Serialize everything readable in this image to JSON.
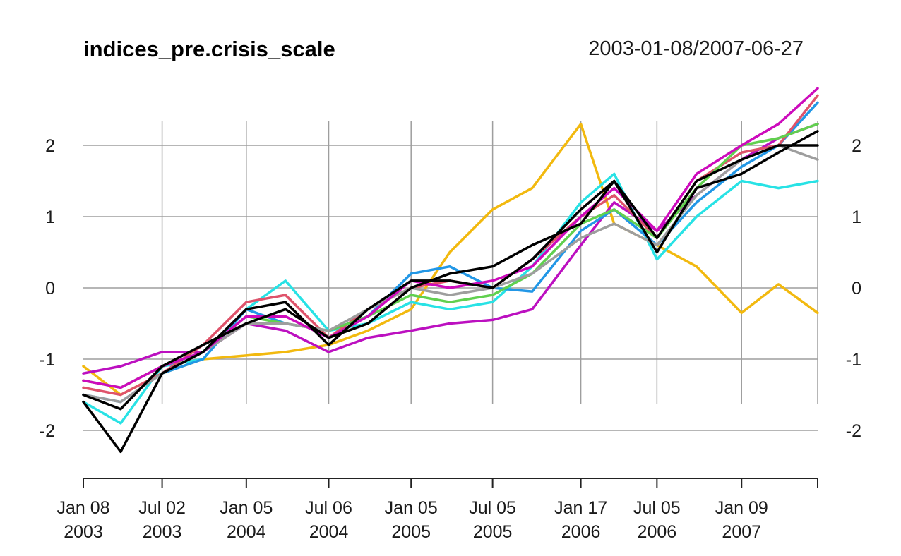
{
  "chart_data": {
    "type": "line",
    "title": "indices_pre.crisis_scale",
    "subtitle": "2003-01-08/2007-06-27",
    "xlabel": "",
    "ylabel": "",
    "x_range": [
      "2003-01-08",
      "2007-06-27"
    ],
    "ylim": [
      -2.6,
      2.9
    ],
    "grid": true,
    "legend": "none",
    "y_ticks": [
      -2,
      -1,
      0,
      1,
      2
    ],
    "y_tick_labels": [
      "-2",
      "-1",
      "0",
      "1",
      "2"
    ],
    "x_ticks": [
      {
        "date": "2003-01-08",
        "line1": "Jan 08",
        "line2": "2003"
      },
      {
        "date": "2003-07-02",
        "line1": "Jul 02",
        "line2": "2003"
      },
      {
        "date": "2004-01-05",
        "line1": "Jan 05",
        "line2": "2004"
      },
      {
        "date": "2004-07-06",
        "line1": "Jul 06",
        "line2": "2004"
      },
      {
        "date": "2005-01-05",
        "line1": "Jan 05",
        "line2": "2005"
      },
      {
        "date": "2005-07-05",
        "line1": "Jul 05",
        "line2": "2005"
      },
      {
        "date": "2006-01-17",
        "line1": "Jan 17",
        "line2": "2006"
      },
      {
        "date": "2006-07-05",
        "line1": "Jul 05",
        "line2": "2006"
      },
      {
        "date": "2007-01-09",
        "line1": "Jan 09",
        "line2": "2007"
      },
      {
        "date": "2007-06-27",
        "line1": "",
        "line2": ""
      }
    ],
    "x_dates": [
      "2003-01-08",
      "2003-04-01",
      "2003-07-02",
      "2003-10-01",
      "2004-01-05",
      "2004-04-01",
      "2004-07-06",
      "2004-10-01",
      "2005-01-05",
      "2005-04-01",
      "2005-07-05",
      "2005-10-01",
      "2006-01-17",
      "2006-04-01",
      "2006-07-05",
      "2006-10-01",
      "2007-01-09",
      "2007-04-01",
      "2007-06-27"
    ],
    "series": [
      {
        "color": "#f2b90f",
        "values": [
          -1.1,
          -1.5,
          -1.2,
          -1.0,
          -0.95,
          -0.9,
          -0.8,
          -0.6,
          -0.3,
          0.5,
          1.1,
          1.4,
          2.3,
          0.9,
          0.6,
          0.3,
          -0.35,
          0.05,
          -0.35
        ]
      },
      {
        "color": "#28e2e5",
        "values": [
          -1.6,
          -1.9,
          -1.1,
          -1.0,
          -0.3,
          0.1,
          -0.6,
          -0.5,
          -0.2,
          -0.3,
          -0.2,
          0.3,
          1.2,
          1.6,
          0.4,
          1.0,
          1.5,
          1.4,
          1.5
        ]
      },
      {
        "color": "#bc10c0",
        "values": [
          -1.2,
          -1.1,
          -0.9,
          -0.9,
          -0.5,
          -0.6,
          -0.9,
          -0.7,
          -0.6,
          -0.5,
          -0.45,
          -0.3,
          0.6,
          1.2,
          0.8,
          1.3,
          1.8,
          2.1,
          2.3
        ]
      },
      {
        "color": "#2297e6",
        "values": [
          -1.5,
          -1.6,
          -1.2,
          -1.0,
          -0.3,
          -0.5,
          -0.6,
          -0.4,
          0.2,
          0.3,
          0.0,
          -0.05,
          0.8,
          1.1,
          0.6,
          1.2,
          1.7,
          2.0,
          2.6
        ]
      },
      {
        "color": "#df536b",
        "values": [
          -1.4,
          -1.5,
          -1.2,
          -0.8,
          -0.2,
          -0.1,
          -0.7,
          -0.3,
          0.0,
          0.1,
          0.0,
          0.4,
          1.0,
          1.3,
          0.7,
          1.5,
          1.9,
          2.0,
          2.7
        ]
      },
      {
        "color": "#61d04f",
        "values": [
          -1.3,
          -1.4,
          -1.1,
          -0.9,
          -0.4,
          -0.5,
          -0.6,
          -0.4,
          -0.1,
          -0.2,
          -0.1,
          0.2,
          0.9,
          1.1,
          0.7,
          1.4,
          2.0,
          2.1,
          2.3
        ]
      },
      {
        "color": "#9e9e9e",
        "values": [
          -1.5,
          -1.6,
          -1.2,
          -0.9,
          -0.5,
          -0.5,
          -0.6,
          -0.3,
          0.0,
          -0.1,
          0.0,
          0.2,
          0.7,
          0.9,
          0.6,
          1.3,
          1.8,
          2.0,
          1.8
        ]
      },
      {
        "color": "#cd0bbc",
        "values": [
          -1.3,
          -1.4,
          -1.1,
          -0.9,
          -0.4,
          -0.4,
          -0.7,
          -0.4,
          0.1,
          0.0,
          0.1,
          0.3,
          1.0,
          1.4,
          0.8,
          1.6,
          2.0,
          2.3,
          2.8
        ]
      },
      {
        "color": "#000000",
        "values": [
          -1.6,
          -2.3,
          -1.2,
          -0.9,
          -0.3,
          -0.2,
          -0.8,
          -0.3,
          0.1,
          0.1,
          0.0,
          0.4,
          1.1,
          1.5,
          0.5,
          1.4,
          1.6,
          1.9,
          2.2
        ]
      },
      {
        "color": "#000000",
        "values": [
          -1.5,
          -1.7,
          -1.1,
          -0.8,
          -0.5,
          -0.3,
          -0.7,
          -0.5,
          0.0,
          0.2,
          0.3,
          0.6,
          0.9,
          1.5,
          0.7,
          1.5,
          1.8,
          2.0,
          2.0
        ]
      }
    ]
  }
}
